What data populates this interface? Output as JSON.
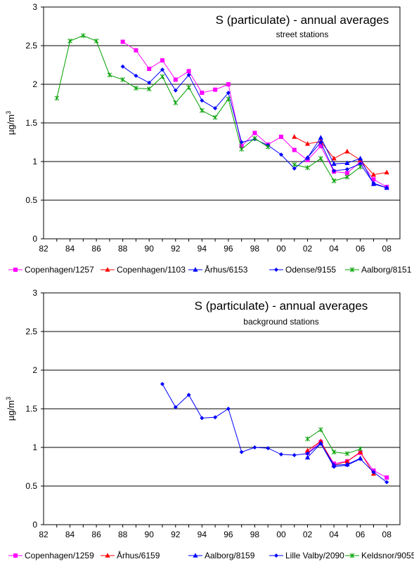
{
  "chart_data": [
    {
      "type": "line",
      "title": "S (particulate) - annual averages",
      "subtitle": "street stations",
      "ylabel": "µg/m3",
      "ylabel_main": "µg/m",
      "ylabel_sup": "3",
      "xlabel": "",
      "ylim": [
        0,
        3
      ],
      "xlim": [
        1982,
        2009
      ],
      "yticks": [
        "0",
        "0.5",
        "1",
        "1.5",
        "2",
        "2.5",
        "3"
      ],
      "xticks": [
        "82",
        "84",
        "86",
        "88",
        "90",
        "92",
        "94",
        "96",
        "98",
        "00",
        "02",
        "04",
        "06",
        "08"
      ],
      "grid": "horizontal",
      "legend": "bottom",
      "series": [
        {
          "name": "Copenhagen/1257",
          "color": "#ff00ff",
          "marker": "square",
          "x": [
            1988,
            1989,
            1990,
            1991,
            1992,
            1993,
            1994,
            1995,
            1996,
            1997,
            1998,
            1999,
            2000,
            2001,
            2002,
            2003,
            2004,
            2005,
            2006,
            2007,
            2008
          ],
          "values": [
            2.55,
            2.44,
            2.2,
            2.31,
            2.06,
            2.17,
            1.89,
            1.93,
            2.0,
            1.2,
            1.37,
            1.22,
            1.32,
            1.15,
            1.02,
            1.2,
            0.87,
            0.85,
            1.0,
            0.77,
            0.67
          ]
        },
        {
          "name": "Copenhagen/1103",
          "color": "#ff0000",
          "marker": "triangle",
          "x": [
            2001,
            2002,
            2003,
            2004,
            2005,
            2006,
            2007,
            2008
          ],
          "values": [
            1.32,
            1.23,
            1.26,
            1.04,
            1.13,
            1.02,
            0.83,
            0.86
          ]
        },
        {
          "name": "Århus/6153",
          "color": "#0000ff",
          "marker": "triangle",
          "x": [
            2002,
            2003,
            2004,
            2005,
            2006,
            2007,
            2008
          ],
          "values": [
            1.05,
            1.31,
            0.97,
            0.98,
            1.04,
            0.71,
            0.66
          ]
        },
        {
          "name": "Odense/9155",
          "color": "#0000ff",
          "marker": "diamond",
          "x": [
            1988,
            1989,
            1990,
            1991,
            1992,
            1993,
            1994,
            1995,
            1996,
            1997,
            1998,
            1999,
            2000,
            2001,
            2002,
            2003,
            2004,
            2005,
            2006,
            2007,
            2008
          ],
          "values": [
            2.23,
            2.11,
            2.02,
            2.19,
            1.92,
            2.12,
            1.79,
            1.69,
            1.89,
            1.25,
            1.29,
            1.21,
            1.09,
            0.91,
            1.05,
            1.25,
            0.88,
            0.9,
            0.97,
            0.72,
            0.66
          ]
        },
        {
          "name": "Aalborg/8151",
          "color": "#00a000",
          "marker": "star",
          "x": [
            1983,
            1984,
            1985,
            1986,
            1987,
            1988,
            1989,
            1990,
            1991,
            1992,
            1993,
            1994,
            1995,
            1996,
            1997,
            1998,
            1999,
            2000,
            2001,
            2002,
            2003,
            2004,
            2005,
            2006,
            2007,
            2008
          ],
          "values": [
            1.82,
            2.56,
            2.63,
            2.56,
            2.12,
            2.06,
            1.95,
            1.94,
            2.1,
            1.76,
            1.96,
            1.66,
            1.57,
            1.81,
            1.16,
            1.3,
            1.19,
            null,
            0.96,
            0.92,
            1.04,
            0.75,
            0.8,
            0.93,
            null,
            null
          ]
        }
      ]
    },
    {
      "type": "line",
      "title": "S (particulate) - annual averages",
      "subtitle": "background stations",
      "ylabel": "µg/m3",
      "ylabel_main": "µg/m",
      "ylabel_sup": "3",
      "xlabel": "",
      "ylim": [
        0,
        3
      ],
      "xlim": [
        1982,
        2009
      ],
      "yticks": [
        "0",
        "0.5",
        "1",
        "1.5",
        "2",
        "2.5",
        "3"
      ],
      "xticks": [
        "82",
        "84",
        "86",
        "88",
        "90",
        "92",
        "94",
        "96",
        "98",
        "00",
        "02",
        "04",
        "06",
        "08"
      ],
      "grid": "horizontal",
      "legend": "bottom",
      "series": [
        {
          "name": "Copenhagen/1259",
          "color": "#ff00ff",
          "marker": "square",
          "x": [
            2002,
            2003,
            2004,
            2005,
            2006,
            2007,
            2008
          ],
          "values": [
            0.93,
            1.07,
            0.79,
            0.82,
            0.93,
            0.7,
            0.61
          ]
        },
        {
          "name": "Århus/6159",
          "color": "#ff0000",
          "marker": "triangle",
          "x": [
            2002,
            2003,
            2004,
            2005,
            2006,
            2007
          ],
          "values": [
            0.96,
            1.08,
            0.77,
            0.82,
            0.94,
            0.66
          ]
        },
        {
          "name": "Aalborg/8159",
          "color": "#0000ff",
          "marker": "triangle",
          "x": [
            2002,
            2003,
            2004,
            2005,
            2006
          ],
          "values": [
            0.87,
            1.05,
            0.77,
            0.78,
            0.86
          ]
        },
        {
          "name": "Lille Valby/2090",
          "color": "#0000ff",
          "marker": "diamond",
          "x": [
            1991,
            1992,
            1993,
            1994,
            1995,
            1996,
            1997,
            1998,
            1999,
            2000,
            2001,
            2002,
            2003,
            2004,
            2005,
            2006,
            2007,
            2008
          ],
          "values": [
            1.82,
            1.52,
            1.68,
            1.38,
            1.39,
            1.5,
            0.94,
            1.0,
            0.99,
            0.91,
            0.9,
            0.92,
            1.05,
            0.75,
            0.77,
            0.85,
            0.68,
            0.55
          ]
        },
        {
          "name": "Keldsnor/9055",
          "color": "#00a000",
          "marker": "star",
          "x": [
            2002,
            2003,
            2004,
            2005,
            2006
          ],
          "values": [
            1.11,
            1.23,
            0.94,
            0.92,
            0.98
          ]
        }
      ]
    }
  ]
}
